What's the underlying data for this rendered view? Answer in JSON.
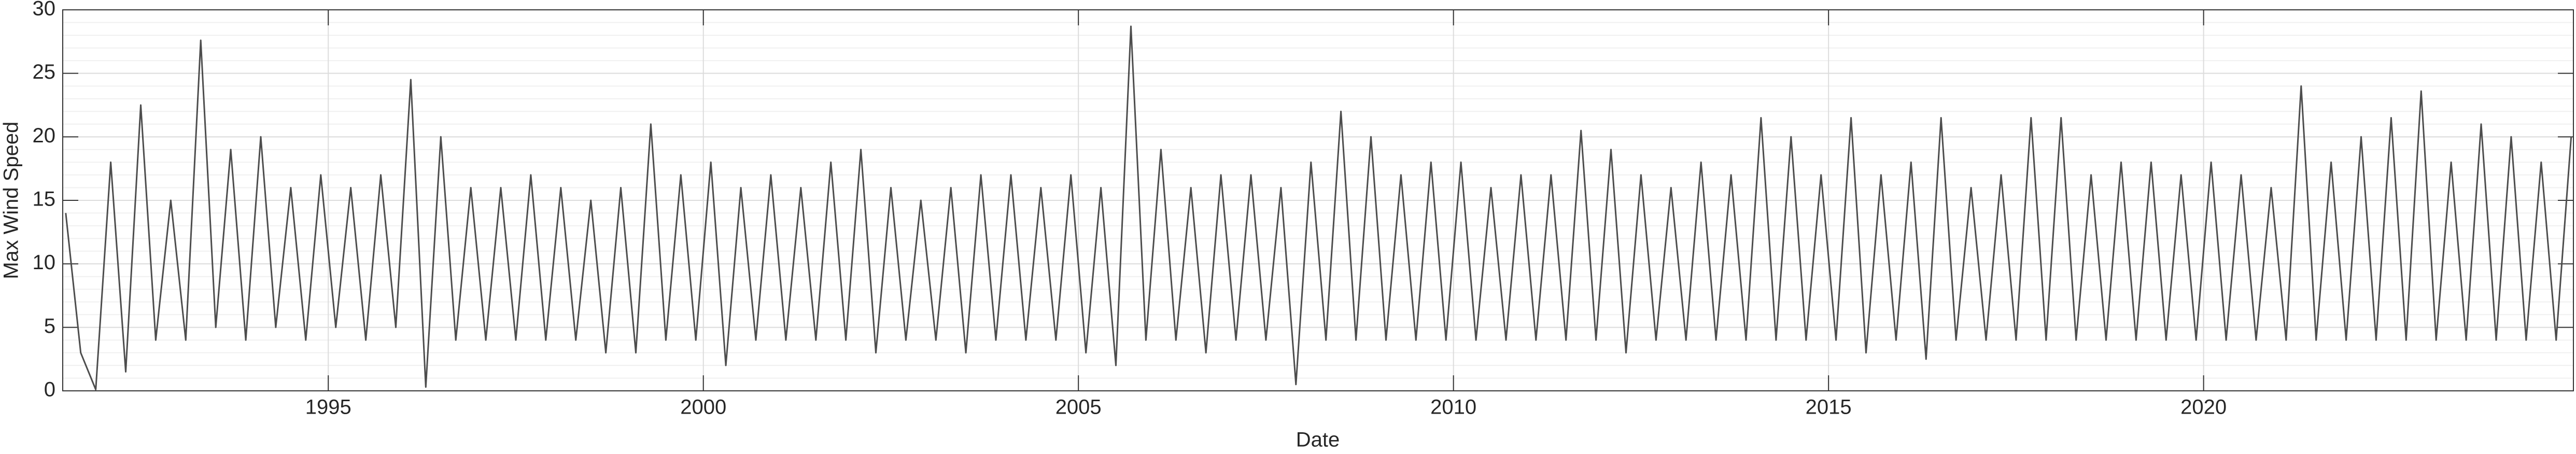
{
  "chart_data": {
    "type": "line",
    "x_label": "Date",
    "y_label": "Max Wind Speed",
    "xlim": [
      1991.46,
      2024.93
    ],
    "xticks": [
      1995,
      2000,
      2005,
      2010,
      2015,
      2020
    ],
    "ylim": [
      0,
      30
    ],
    "yticks": [
      0,
      5,
      10,
      15,
      20,
      25,
      30
    ],
    "grid": true,
    "minor_grid_step": 1,
    "series": [
      {
        "color": "#4d4d4d",
        "x": [
          1991.5,
          1991.7,
          1991.9,
          1992.1,
          1992.3,
          1992.5,
          1992.7,
          1992.9,
          1993.1,
          1993.3,
          1993.5,
          1993.7,
          1993.9,
          1994.1,
          1994.3,
          1994.5,
          1994.7,
          1994.9,
          1995.1,
          1995.3,
          1995.5,
          1995.7,
          1995.9,
          1996.1,
          1996.3,
          1996.5,
          1996.7,
          1996.9,
          1997.1,
          1997.3,
          1997.5,
          1997.7,
          1997.9,
          1998.1,
          1998.3,
          1998.5,
          1998.7,
          1998.9,
          1999.1,
          1999.3,
          1999.5,
          1999.7,
          1999.9,
          2000.1,
          2000.3,
          2000.5,
          2000.7,
          2000.9,
          2001.1,
          2001.3,
          2001.5,
          2001.7,
          2001.9,
          2002.1,
          2002.3,
          2002.5,
          2002.7,
          2002.9,
          2003.1,
          2003.3,
          2003.5,
          2003.7,
          2003.9,
          2004.1,
          2004.3,
          2004.5,
          2004.7,
          2004.9,
          2005.1,
          2005.3,
          2005.5,
          2005.7,
          2005.9,
          2006.1,
          2006.3,
          2006.5,
          2006.7,
          2006.9,
          2007.1,
          2007.3,
          2007.5,
          2007.7,
          2007.9,
          2008.1,
          2008.3,
          2008.5,
          2008.7,
          2008.9,
          2009.1,
          2009.3,
          2009.5,
          2009.7,
          2009.9,
          2010.1,
          2010.3,
          2010.5,
          2010.7,
          2010.9,
          2011.1,
          2011.3,
          2011.5,
          2011.7,
          2011.9,
          2012.1,
          2012.3,
          2012.5,
          2012.7,
          2012.9,
          2013.1,
          2013.3,
          2013.5,
          2013.7,
          2013.9,
          2014.1,
          2014.3,
          2014.5,
          2014.7,
          2014.9,
          2015.1,
          2015.3,
          2015.5,
          2015.7,
          2015.9,
          2016.1,
          2016.3,
          2016.5,
          2016.7,
          2016.9,
          2017.1,
          2017.3,
          2017.5,
          2017.7,
          2017.9,
          2018.1,
          2018.3,
          2018.5,
          2018.7,
          2018.9,
          2019.1,
          2019.3,
          2019.5,
          2019.7,
          2019.9,
          2020.1,
          2020.3,
          2020.5,
          2020.7,
          2020.9,
          2021.1,
          2021.3,
          2021.5,
          2021.7,
          2021.9,
          2022.1,
          2022.3,
          2022.5,
          2022.7,
          2022.9,
          2023.1,
          2023.3,
          2023.5,
          2023.7,
          2023.9,
          2024.1,
          2024.3,
          2024.5,
          2024.7,
          2024.9
        ],
        "values": [
          14,
          3,
          0.1,
          18,
          1.5,
          22.5,
          4,
          15,
          4,
          27.6,
          5,
          19,
          4,
          20,
          5,
          16,
          4,
          17,
          5,
          16,
          4,
          17,
          5,
          24.5,
          0.3,
          20,
          4,
          16,
          4,
          16,
          4,
          17,
          4,
          16,
          4,
          15,
          3,
          16,
          3,
          21,
          4,
          17,
          4,
          18,
          2,
          16,
          4,
          17,
          4,
          16,
          4,
          18,
          4,
          19,
          3,
          16,
          4,
          15,
          4,
          16,
          3,
          17,
          4,
          17,
          4,
          16,
          4,
          17,
          3,
          16,
          2,
          28.7,
          4,
          19,
          4,
          16,
          3,
          17,
          4,
          17,
          4,
          16,
          0.5,
          18,
          4,
          22,
          4,
          20,
          4,
          17,
          4,
          18,
          4,
          18,
          4,
          16,
          4,
          17,
          4,
          17,
          4,
          20.5,
          4,
          19,
          3,
          17,
          4,
          16,
          4,
          18,
          4,
          17,
          4,
          21.5,
          4,
          20,
          4,
          17,
          4,
          21.5,
          3,
          17,
          4,
          18,
          2.5,
          21.5,
          4,
          16,
          4,
          17,
          4,
          21.5,
          4,
          21.5,
          4,
          17,
          4,
          18,
          4,
          18,
          4,
          17,
          4,
          18,
          4,
          17,
          4,
          16,
          4,
          24,
          4,
          18,
          4,
          20,
          4,
          21.5,
          4,
          23.6,
          4,
          18,
          4,
          21,
          4,
          20,
          4,
          18,
          4,
          20
        ]
      }
    ]
  }
}
